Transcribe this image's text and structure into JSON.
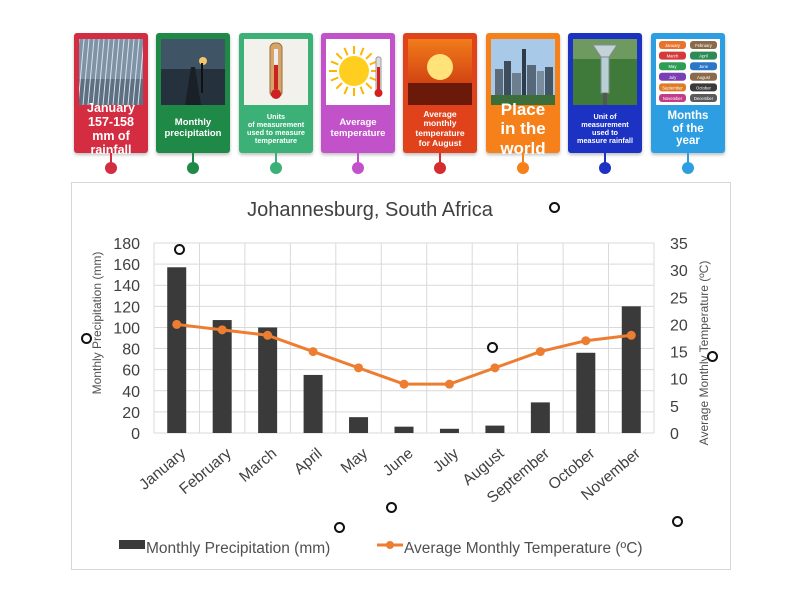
{
  "cards": [
    {
      "label": "January 157-158 mm of rainfall",
      "lines": [
        "January",
        "157-158",
        "mm of",
        "rainfall"
      ],
      "color": "#d42d41",
      "dot": "#d42d41",
      "image": "rain-scene",
      "size": 12.5
    },
    {
      "label": "Monthly precipitation",
      "lines": [
        "Monthly",
        "precipitation"
      ],
      "color": "#1f8a48",
      "dot": "#1f8a48",
      "image": "rainy-road-scene",
      "size": 9.5
    },
    {
      "label": "Units of measurement used to measure temperature",
      "lines": [
        "Units",
        "of measurement",
        "used to measure",
        "temperature"
      ],
      "color": "#3bb178",
      "dot": "#3bb178",
      "image": "thermometer-scene",
      "size": 7.3
    },
    {
      "label": "Average temperature",
      "lines": [
        "Average",
        "temperature"
      ],
      "color": "#c152c9",
      "dot": "#c152c9",
      "image": "sun-thermometer-scene",
      "size": 9.5
    },
    {
      "label": "Average monthly temperature for August",
      "lines": [
        "Average",
        "monthly",
        "temperature",
        "for August"
      ],
      "color": "#e0431c",
      "dot": "#d42d2d",
      "image": "sunset-scene",
      "size": 8.5
    },
    {
      "label": "Place in the world",
      "lines": [
        "Place",
        "in the",
        "world"
      ],
      "color": "#f6801a",
      "dot": "#f6801a",
      "image": "city-skyline-scene",
      "size": 17
    },
    {
      "label": "Unit of measurement used to measure rainfall",
      "lines": [
        "Unit of",
        "measurement",
        "used to",
        "measure rainfall"
      ],
      "color": "#1c32c2",
      "dot": "#1c32c2",
      "image": "rain-gauge-scene",
      "size": 7.3
    },
    {
      "label": "Months of the year",
      "lines": [
        "Months",
        "of the",
        "year"
      ],
      "color": "#2e9ee3",
      "dot": "#2e9ee3",
      "image": "month-labels-scene",
      "size": 11.5
    }
  ],
  "month_tiles": [
    "January",
    "February",
    "March",
    "April",
    "May",
    "June",
    "July",
    "August",
    "September",
    "October",
    "November",
    "December"
  ],
  "chart_data": {
    "type": "bar",
    "title": "Johannesburg, South Africa",
    "categories": [
      "January",
      "February",
      "March",
      "April",
      "May",
      "June",
      "July",
      "August",
      "September",
      "October",
      "November"
    ],
    "series": [
      {
        "name": "Monthly Precipitation  (mm)",
        "type": "bar",
        "axis": "left",
        "color": "#3a3a3a",
        "values": [
          157,
          107,
          100,
          55,
          15,
          6,
          4,
          7,
          29,
          76,
          120
        ]
      },
      {
        "name": "Average Monthly  Temperature (ºC)",
        "type": "line",
        "axis": "right",
        "color": "#ed7d31",
        "values": [
          20,
          19,
          18,
          15,
          12,
          9,
          9,
          12,
          15,
          17,
          18
        ]
      }
    ],
    "ylabel": "Monthly Precipitation  (mm)",
    "y2label": "Average Monthly  Temperature (ºC)",
    "ylim": [
      0,
      180
    ],
    "y2lim": [
      0,
      35
    ],
    "yticks": [
      0,
      20,
      40,
      60,
      80,
      100,
      120,
      140,
      160,
      180
    ],
    "y2ticks": [
      0,
      5,
      10,
      15,
      20,
      25,
      30,
      35
    ],
    "grid": true,
    "legend_position": "bottom"
  }
}
